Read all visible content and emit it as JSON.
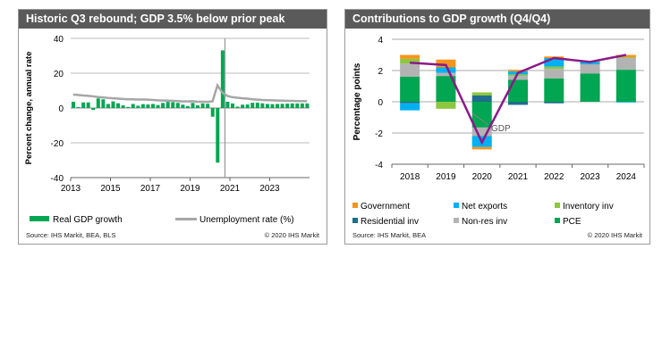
{
  "chart_data": [
    {
      "type": "bar+line",
      "title": "Historic Q3 rebound; GDP 3.5% below prior peak",
      "ylabel": "Percent change, annual rate",
      "ylim": [
        -40,
        40
      ],
      "yticks": [
        "40",
        "20",
        "0",
        "-20",
        "-40"
      ],
      "xticks": [
        "2013",
        "2015",
        "2017",
        "2019",
        "2021",
        "2023"
      ],
      "xlim": [
        2013,
        2025
      ],
      "grid": true,
      "legend_placement": "bottom",
      "source": "Source: IHS Markit, BEA, BLS",
      "copyright": "© 2020 IHS Markit",
      "series": [
        {
          "name": "Real GDP growth",
          "kind": "bar",
          "color": "#00a651",
          "frequency": "quarterly",
          "start": "2013Q1",
          "values": [
            3.6,
            0.5,
            3.2,
            3.2,
            -1.1,
            5.5,
            5.0,
            2.3,
            3.8,
            2.7,
            1.5,
            0.6,
            2.3,
            1.3,
            2.2,
            2.0,
            2.3,
            1.7,
            2.9,
            3.5,
            3.3,
            2.9,
            1.9,
            1.1,
            2.9,
            1.5,
            2.6,
            2.4,
            -5.0,
            -31.4,
            33.1,
            3.6,
            2.6,
            0.8,
            1.9,
            2.0,
            3.0,
            3.0,
            2.7,
            2.3,
            2.2,
            2.3,
            2.4,
            2.5,
            2.6,
            2.6,
            2.6,
            2.6
          ]
        },
        {
          "name": "Unemployment rate (%)",
          "kind": "line",
          "color": "#a6a6a6",
          "frequency": "quarterly",
          "start": "2013Q1",
          "values": [
            7.7,
            7.5,
            7.2,
            7.0,
            6.7,
            6.3,
            6.1,
            5.8,
            5.6,
            5.4,
            5.2,
            5.0,
            5.0,
            4.9,
            4.9,
            4.8,
            4.6,
            4.4,
            4.3,
            4.2,
            4.1,
            4.0,
            3.8,
            3.8,
            3.9,
            3.6,
            3.6,
            3.5,
            3.8,
            13.0,
            8.8,
            6.9,
            6.2,
            5.9,
            5.6,
            5.4,
            5.0,
            4.8,
            4.6,
            4.5,
            4.4,
            4.3,
            4.2,
            4.1,
            4.1,
            4.0,
            4.0,
            3.9
          ]
        }
      ],
      "marker_line_at": "2020Q4"
    },
    {
      "type": "stacked-bar+line",
      "title": "Contributions to GDP growth (Q4/Q4)",
      "ylabel": "Percentage points",
      "ylim": [
        -4,
        4
      ],
      "yticks": [
        "4",
        "2",
        "0",
        "-2",
        "-4"
      ],
      "categories": [
        "2018",
        "2019",
        "2020",
        "2021",
        "2022",
        "2023",
        "2024"
      ],
      "grid": true,
      "legend_placement": "bottom",
      "source": "Source: IHS Markit, BEA",
      "copyright": "© 2020 IHS Markit",
      "annotation": "GDP",
      "series": [
        {
          "name": "PCE",
          "color": "#00a651",
          "values": [
            1.6,
            1.65,
            -1.65,
            1.4,
            1.5,
            1.8,
            2.05
          ]
        },
        {
          "name": "Residential inv",
          "color": "#1f6e8c",
          "values": [
            -0.1,
            0.0,
            0.4,
            -0.2,
            -0.1,
            0.0,
            0.0
          ]
        },
        {
          "name": "Non-res inv",
          "color": "#b3b3b3",
          "values": [
            0.85,
            0.2,
            -0.55,
            0.25,
            0.6,
            0.6,
            0.75
          ]
        },
        {
          "name": "Inventory inv",
          "color": "#8dc63f",
          "values": [
            0.3,
            -0.45,
            0.2,
            0.1,
            0.15,
            0.0,
            0.05
          ]
        },
        {
          "name": "Net exports",
          "color": "#00b0f0",
          "values": [
            -0.45,
            0.35,
            -0.7,
            0.2,
            0.55,
            0.15,
            -0.05
          ]
        },
        {
          "name": "Government",
          "color": "#f7941d",
          "values": [
            0.25,
            0.5,
            -0.15,
            0.1,
            0.1,
            0.05,
            0.15
          ]
        }
      ],
      "line": {
        "name": "GDP",
        "color": "#8b1a89",
        "values": [
          2.5,
          2.35,
          -2.6,
          1.85,
          2.8,
          2.55,
          3.0
        ]
      },
      "legend_order": [
        "Government",
        "Net exports",
        "Inventory inv",
        "Residential inv",
        "Non-res inv",
        "PCE"
      ]
    }
  ]
}
